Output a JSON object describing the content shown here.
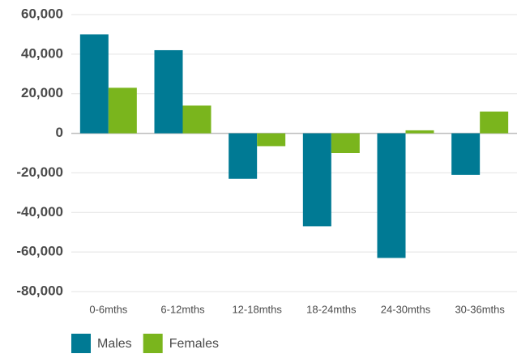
{
  "chart_data": {
    "type": "bar",
    "categories": [
      "0-6mths",
      "6-12mths",
      "12-18mths",
      "18-24mths",
      "24-30mths",
      "30-36mths"
    ],
    "series": [
      {
        "name": "Males",
        "color": "#007a94",
        "values": [
          50000,
          42000,
          -23000,
          -47000,
          -63000,
          -21000
        ]
      },
      {
        "name": "Females",
        "color": "#7ab51d",
        "values": [
          23000,
          14000,
          -6500,
          -10000,
          1500,
          11000
        ]
      }
    ],
    "ylim": [
      -80000,
      60000
    ],
    "yticks": [
      {
        "value": -80000,
        "label": "-80,000"
      },
      {
        "value": -60000,
        "label": "-60,000"
      },
      {
        "value": -40000,
        "label": "-40,000"
      },
      {
        "value": -20000,
        "label": "-20,000"
      },
      0,
      {
        "value": 20000,
        "label": "20,000"
      },
      {
        "value": 40000,
        "label": "40,000"
      },
      {
        "value": 60000,
        "label": "60,000"
      }
    ],
    "grid": true,
    "legend": "bottom-left"
  }
}
